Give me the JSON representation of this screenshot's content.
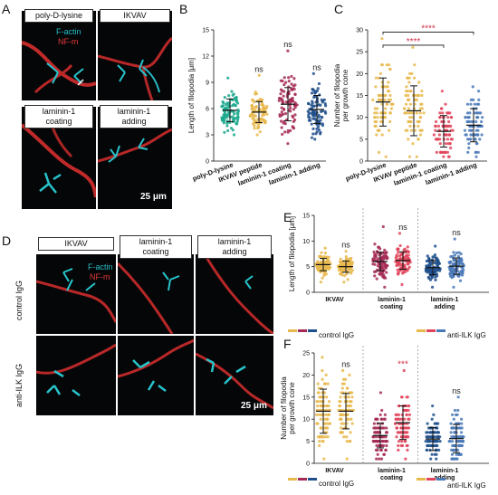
{
  "panels": {
    "A": {
      "letter": "A",
      "top_labels": [
        "poly-D-lysine",
        "IKVAV"
      ],
      "bottom_labels": [
        "laminin-1\ncoating",
        "laminin-1\nadding"
      ],
      "legend_factin": "F-actin",
      "legend_nfm": "NF-m",
      "scale": "25 μm"
    },
    "D": {
      "letter": "D",
      "col_labels": [
        "IKVAV",
        "laminin-1\ncoating",
        "laminin-1\nadding"
      ],
      "row_labels": [
        "control IgG",
        "anti-ILK IgG"
      ],
      "legend_factin": "F-actin",
      "legend_nfm": "NF-m",
      "scale": "25 μm"
    },
    "B": {
      "letter": "B"
    },
    "C": {
      "letter": "C"
    },
    "E": {
      "letter": "E",
      "legend_control": "control IgG",
      "legend_anti": "anti-ILK IgG"
    },
    "F": {
      "letter": "F",
      "legend_control": "control IgG",
      "legend_anti": "anti-ILK IgG"
    }
  },
  "colors": {
    "green": "#1aa88d",
    "yellow": "#e8b94c",
    "crimson": "#a62a56",
    "navy": "#1f4f8c",
    "red": "#e0445a",
    "blue": "#4a79b8"
  },
  "chart_data": [
    {
      "panel": "B",
      "type": "scatter",
      "ylabel": "Length of filopodia [μm]",
      "yticks": [
        0,
        3,
        6,
        9,
        12,
        15
      ],
      "ylim": [
        0,
        15
      ],
      "categories": [
        "poly-D-lysine",
        "IKVAV peptide",
        "laminin-1 coating",
        "laminin-1 adding"
      ],
      "means": [
        5.8,
        5.6,
        6.5,
        5.9
      ],
      "sd": [
        1.3,
        1.2,
        1.9,
        1.6
      ],
      "spread": [
        [
          3.0,
          9.5
        ],
        [
          3.0,
          9.8
        ],
        [
          2.0,
          12.6
        ],
        [
          2.5,
          10.0
        ]
      ],
      "annotations": [
        "",
        "ns",
        "ns",
        "ns"
      ]
    },
    {
      "panel": "C",
      "type": "scatter",
      "ylabel": "Number of filopodia per growth cone",
      "yticks": [
        0,
        5,
        10,
        15,
        20,
        25,
        30
      ],
      "ylim": [
        0,
        30
      ],
      "categories": [
        "poly-D-lysine",
        "IKVAV peptide",
        "laminin-1 coating",
        "laminin-1 adding"
      ],
      "means": [
        13.5,
        11.5,
        6.8,
        8.2
      ],
      "sd": [
        5.5,
        5.7,
        3.6,
        3.8
      ],
      "spread": [
        [
          1,
          27.5
        ],
        [
          1,
          26
        ],
        [
          1,
          16
        ],
        [
          1,
          17
        ]
      ],
      "significance": [
        "****",
        "****"
      ]
    },
    {
      "panel": "E",
      "type": "scatter",
      "ylabel": "Length of filopodia [μm]",
      "yticks": [
        0,
        5,
        10,
        15
      ],
      "ylim": [
        0,
        15
      ],
      "groups": [
        "IKVAV",
        "laminin-1\ncoating",
        "laminin-1\nadding"
      ],
      "means": [
        5.4,
        5.0,
        6.0,
        6.2,
        4.8,
        5.1
      ],
      "sd": [
        1.2,
        1.1,
        1.8,
        1.7,
        1.4,
        1.6
      ],
      "spread": [
        [
          2,
          8.6
        ],
        [
          2,
          8
        ],
        [
          1,
          12.8
        ],
        [
          1.5,
          11.5
        ],
        [
          1,
          9
        ],
        [
          1,
          10.4
        ]
      ],
      "annotations": [
        "",
        "ns",
        "",
        "ns",
        "",
        "ns"
      ]
    },
    {
      "panel": "F",
      "type": "scatter",
      "ylabel": "Number of filopodia per growth cone",
      "yticks": [
        0,
        5,
        10,
        15,
        20,
        25
      ],
      "ylim": [
        0,
        25
      ],
      "groups": [
        "IKVAV",
        "laminin-1\ncoating",
        "laminin-1\nadding"
      ],
      "means": [
        11.8,
        11.8,
        6.3,
        9.2,
        5.5,
        5.6
      ],
      "sd": [
        5,
        4,
        2.8,
        3.8,
        2.6,
        3.2
      ],
      "spread": [
        [
          1,
          24
        ],
        [
          1,
          21
        ],
        [
          1,
          16
        ],
        [
          1,
          21
        ],
        [
          1,
          13
        ],
        [
          1,
          15
        ]
      ],
      "annotations": [
        "",
        "ns",
        "",
        "***",
        "",
        "ns"
      ]
    }
  ]
}
